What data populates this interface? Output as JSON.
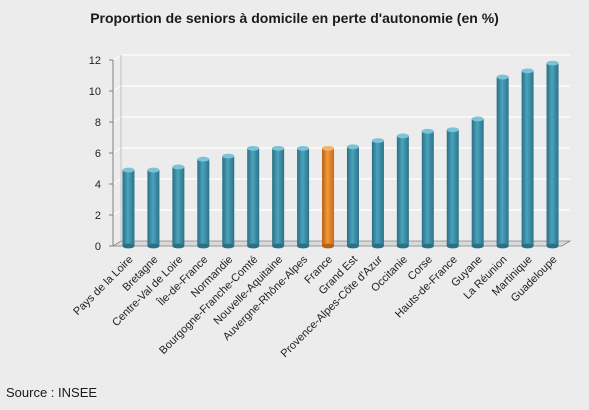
{
  "chart_data": {
    "type": "bar",
    "title": "Proportion de seniors à domicile en perte d'autonomie (en %)",
    "categories": [
      "Pays de la Loire",
      "Bretagne",
      "Centre-Val de Loire",
      "Île-de-France",
      "Normandie",
      "Bourgogne-Franche-Comté",
      "Nouvelle-Aquitaine",
      "Auvergne-Rhône-Alpes",
      "France",
      "Grand Est",
      "Provence-Alpes-Côte d'Azur",
      "Occitanie",
      "Corse",
      "Hauts-de-France",
      "Guyane",
      "La Réunion",
      "Martinique",
      "Guadeloupe"
    ],
    "values": [
      4.9,
      4.9,
      5.1,
      5.6,
      5.8,
      6.3,
      6.3,
      6.3,
      6.3,
      6.4,
      6.8,
      7.1,
      7.4,
      7.5,
      8.2,
      10.9,
      11.3,
      11.8
    ],
    "highlight_category": "France",
    "colors": {
      "bar": "#31849b",
      "highlight": "#e07b20",
      "grid": "#ffffff",
      "axis": "#7f7f7f"
    },
    "ylim": [
      0,
      12
    ],
    "yticks": [
      0,
      2,
      4,
      6,
      8,
      10,
      12
    ],
    "grid": true,
    "xlabel": "",
    "ylabel": ""
  },
  "source": "Source : INSEE"
}
